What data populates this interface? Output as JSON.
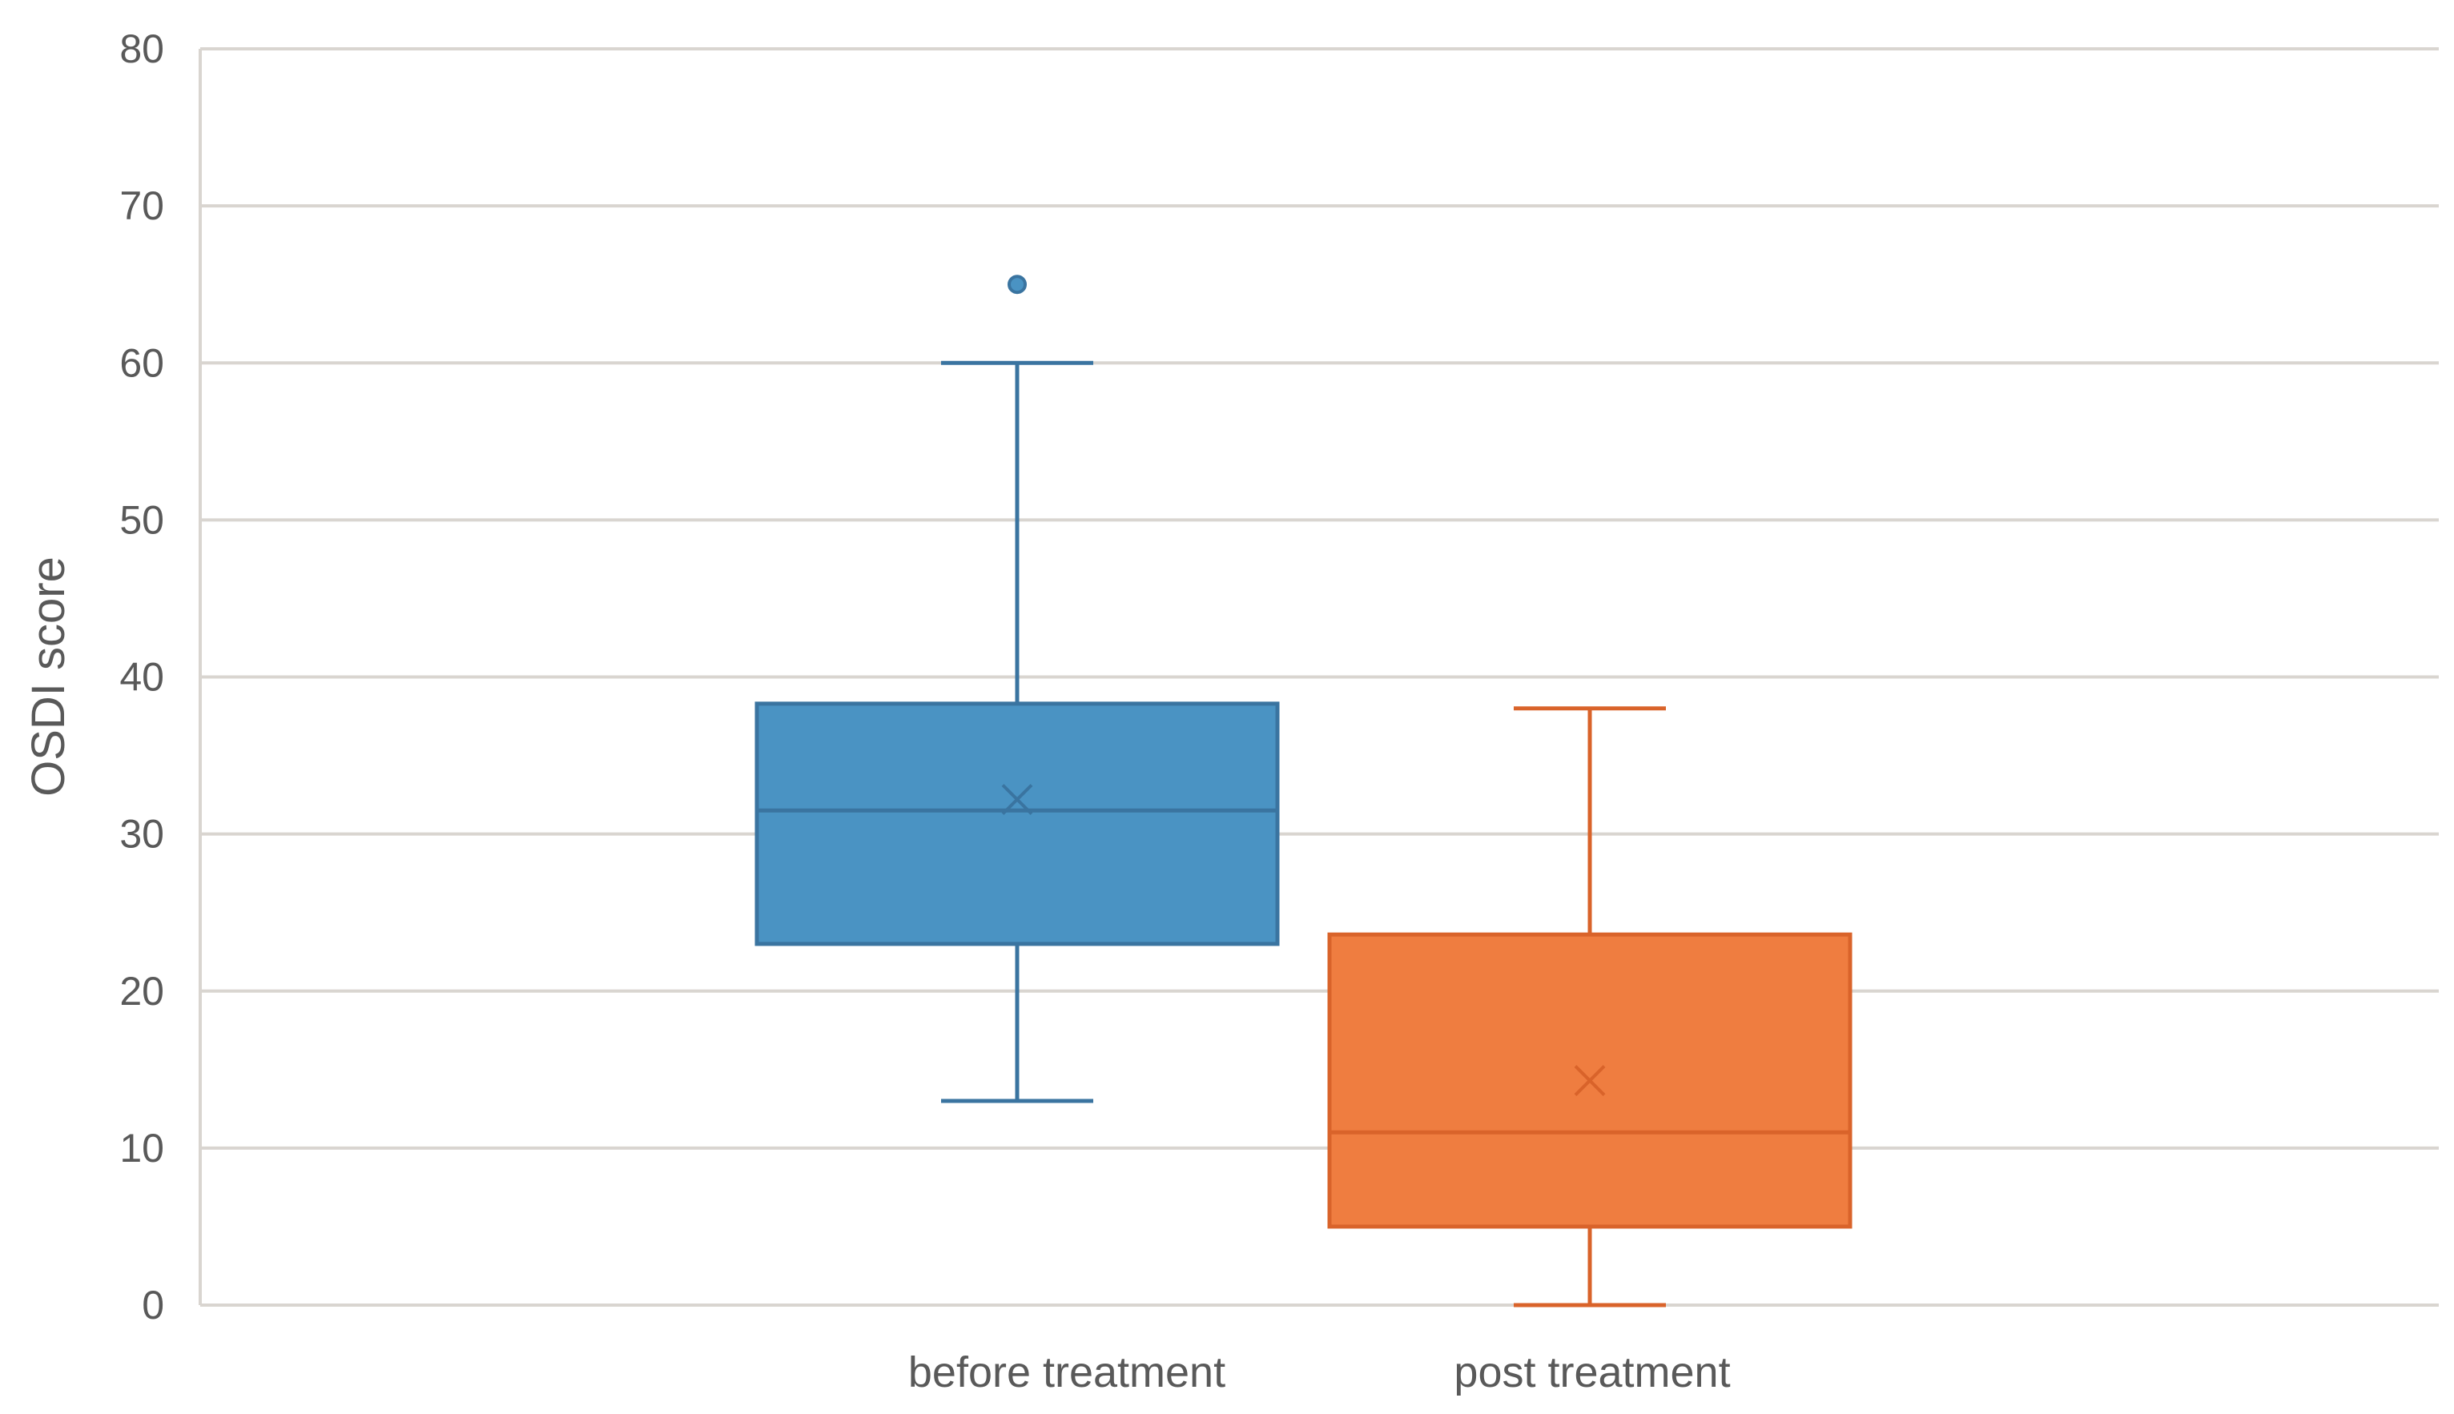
{
  "chart_data": {
    "type": "box",
    "title": "",
    "xlabel": "",
    "ylabel": "OSDI score",
    "ylim": [
      0,
      80
    ],
    "yticks": [
      0,
      10,
      20,
      30,
      40,
      50,
      60,
      70,
      80
    ],
    "grid": true,
    "legend": "none",
    "categories": [
      "before treatment",
      "post treatment"
    ],
    "series": [
      {
        "category": "before treatment",
        "color": "#4A93C3",
        "edge_color": "#3A74A0",
        "whisker_low": 13,
        "q1": 23,
        "median": 31.5,
        "mean": 32.2,
        "q3": 38.3,
        "whisker_high": 60,
        "outliers": [
          65
        ]
      },
      {
        "category": "post treatment",
        "color": "#EF7D40",
        "edge_color": "#D9632A",
        "whisker_low": 0,
        "q1": 5,
        "median": 11,
        "mean": 14.3,
        "q3": 23.6,
        "whisker_high": 38,
        "outliers": []
      }
    ],
    "colors": {
      "grid": "#D9D5D0",
      "text": "#595959"
    }
  }
}
